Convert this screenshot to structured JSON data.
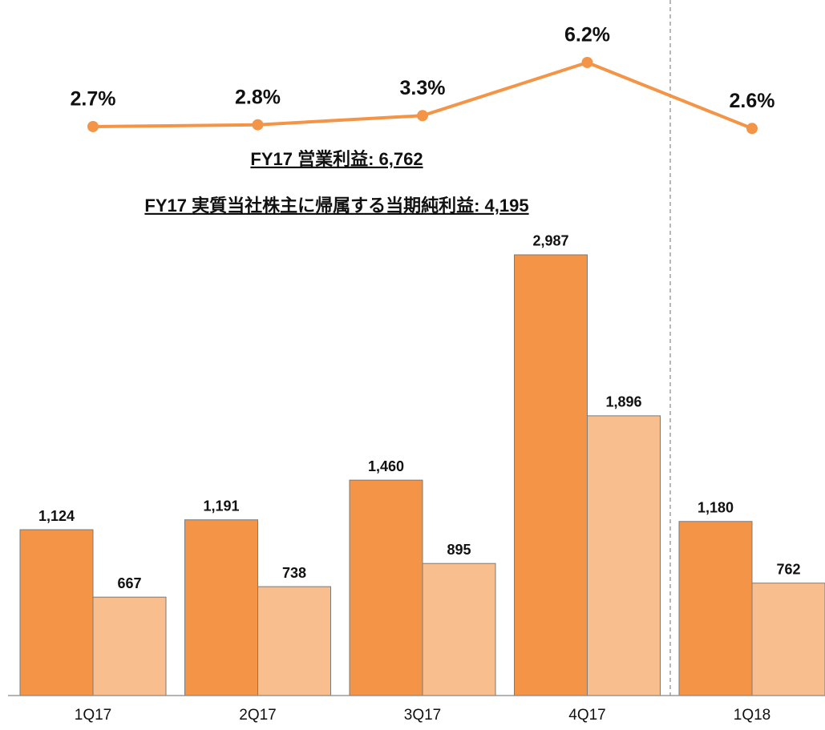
{
  "chart_data": {
    "type": "bar",
    "annotations": [
      "FY17 営業利益: 6,762",
      "FY17 実質当社株主に帰属する当期純利益: 4,195"
    ],
    "categories": [
      "1Q17",
      "2Q17",
      "3Q17",
      "4Q17",
      "1Q18"
    ],
    "ylim": [
      0,
      3000
    ],
    "y2lim": [
      0,
      7
    ],
    "series": [
      {
        "type": "bar",
        "color": "#f39447",
        "values": [
          1124,
          1191,
          1460,
          2987,
          1180
        ],
        "value_labels": [
          "1,124",
          "1,191",
          "1,460",
          "2,987",
          "1,180"
        ]
      },
      {
        "type": "bar",
        "color": "#f9be8e",
        "values": [
          667,
          738,
          895,
          1896,
          762
        ],
        "value_labels": [
          "667",
          "738",
          "895",
          "1,896",
          "762"
        ]
      },
      {
        "type": "line",
        "axis": "y2",
        "color": "#f39447",
        "values": [
          2.7,
          2.8,
          3.3,
          6.2,
          2.6
        ],
        "value_labels": [
          "2.7%",
          "2.8%",
          "3.3%",
          "6.2%",
          "2.6%"
        ]
      }
    ]
  }
}
